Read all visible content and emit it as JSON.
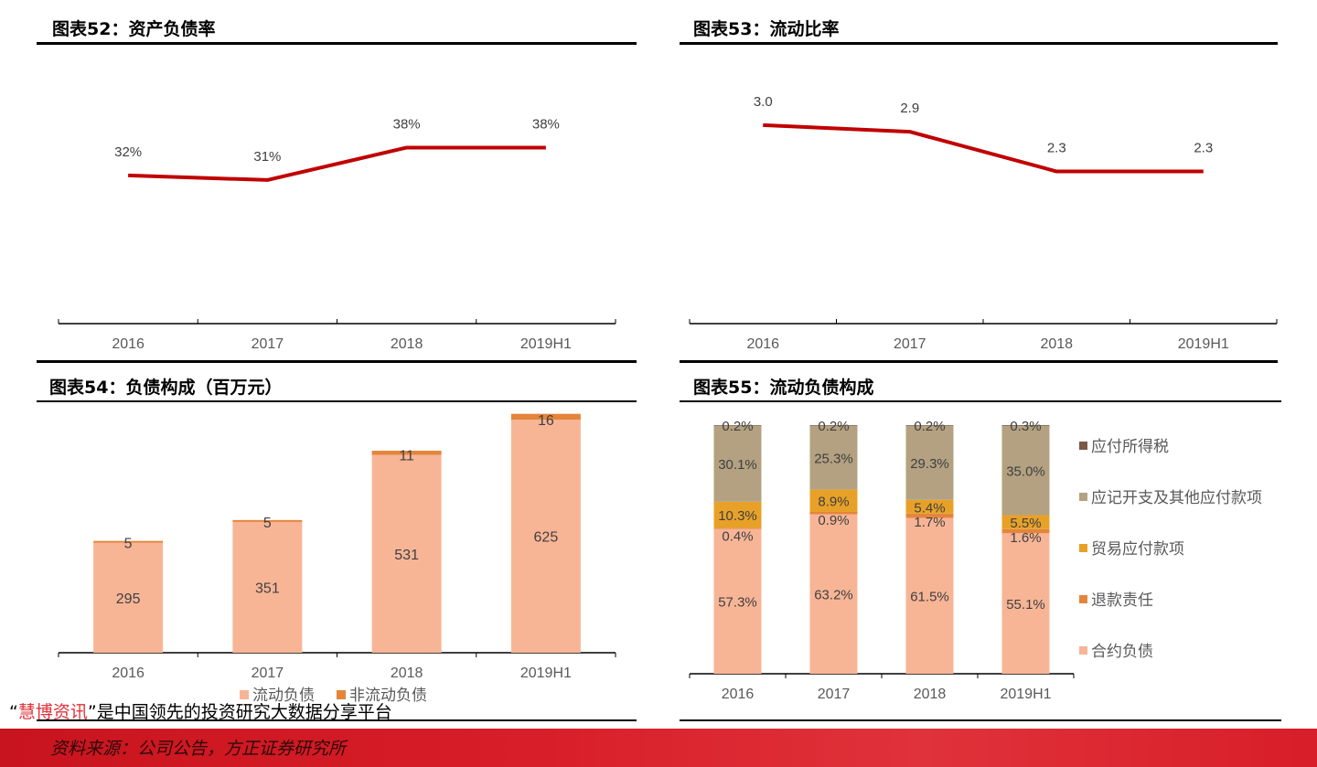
{
  "panels": {
    "p52": {
      "title": "图表52：资产负债率"
    },
    "p53": {
      "title": "图表53：流动比率"
    },
    "p54": {
      "title": "图表54：负债构成（百万元）"
    },
    "p55": {
      "title": "图表55：流动负债构成"
    }
  },
  "watermark": {
    "open_quote": "“",
    "brand": "慧博资讯",
    "text": "”是中国领先的投资研究大数据分享平台"
  },
  "footer": {
    "source": "资料来源：公司公告，方正证券研究所"
  },
  "colors": {
    "line": "#c00000",
    "current_liab": "#f7b596",
    "noncurrent_liab": "#e4853c",
    "contract_liab": "#f7b596",
    "refund_liab": "#e4853c",
    "trade_payable": "#e8a128",
    "accrued_other": "#b3a181",
    "tax_payable": "#7b5848"
  },
  "chart_data": [
    {
      "id": "c52",
      "type": "line",
      "categories": [
        "2016",
        "2017",
        "2018",
        "2019H1"
      ],
      "series": [
        {
          "values": [
            32,
            31,
            38,
            38
          ],
          "labels": [
            "32%",
            "31%",
            "38%",
            "38%"
          ]
        }
      ],
      "ylim": [
        0,
        60
      ]
    },
    {
      "id": "c53",
      "type": "line",
      "categories": [
        "2016",
        "2017",
        "2018",
        "2019H1"
      ],
      "series": [
        {
          "values": [
            3.0,
            2.9,
            2.3,
            2.3
          ],
          "labels": [
            "3.0",
            "2.9",
            "2.3",
            "2.3"
          ]
        }
      ],
      "ylim": [
        0,
        4.2
      ]
    },
    {
      "id": "c54",
      "type": "bar",
      "stacked": true,
      "categories": [
        "2016",
        "2017",
        "2018",
        "2019H1"
      ],
      "series": [
        {
          "name": "流动负债",
          "values": [
            295,
            351,
            531,
            625
          ]
        },
        {
          "name": "非流动负债",
          "values": [
            5,
            5,
            11,
            16
          ]
        }
      ],
      "ylim": [
        0,
        700
      ],
      "legend": "bottom"
    },
    {
      "id": "c55",
      "type": "bar",
      "stacked": true,
      "percent": true,
      "categories": [
        "2016",
        "2017",
        "2018",
        "2019H1"
      ],
      "series": [
        {
          "name": "合约负债",
          "values": [
            57.3,
            63.2,
            61.5,
            55.1
          ],
          "labels": [
            "57.3%",
            "63.2%",
            "61.5%",
            "55.1%"
          ]
        },
        {
          "name": "退款责任",
          "values": [
            0.4,
            0.9,
            1.7,
            1.6
          ],
          "labels": [
            "0.4%",
            "0.9%",
            "1.7%",
            "1.6%"
          ]
        },
        {
          "name": "贸易应付款项",
          "values": [
            10.3,
            8.9,
            5.4,
            5.5
          ],
          "labels": [
            "10.3%",
            "8.9%",
            "5.4%",
            "5.5%"
          ]
        },
        {
          "name": "应记开支及其他应付款项",
          "values": [
            30.1,
            25.3,
            29.3,
            35.0
          ],
          "labels": [
            "30.1%",
            "25.3%",
            "29.3%",
            "35.0%"
          ]
        },
        {
          "name": "应付所得税",
          "values": [
            0.2,
            0.2,
            0.2,
            0.3
          ],
          "labels": [
            "0.2%",
            "0.2%",
            "0.2%",
            "0.3%"
          ]
        }
      ],
      "legend": "right"
    }
  ]
}
